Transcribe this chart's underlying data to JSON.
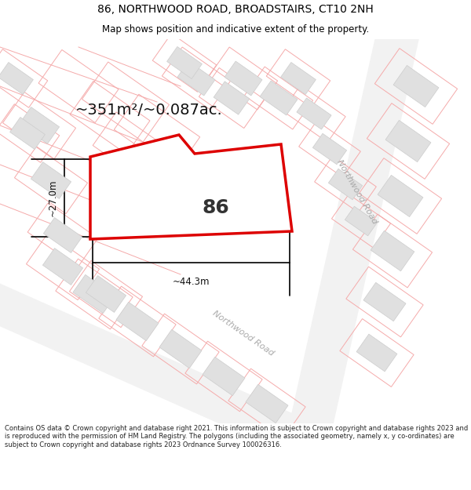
{
  "title_line1": "86, NORTHWOOD ROAD, BROADSTAIRS, CT10 2NH",
  "title_line2": "Map shows position and indicative extent of the property.",
  "area_text": "~351m²/~0.087ac.",
  "label_86": "86",
  "dim_height": "~27.0m",
  "dim_width": "~44.3m",
  "road_label_right": "Northwood Road",
  "road_label_lower": "Northwood Road",
  "footer_text": "Contains OS data © Crown copyright and database right 2021. This information is subject to Crown copyright and database rights 2023 and is reproduced with the permission of HM Land Registry. The polygons (including the associated geometry, namely x, y co-ordinates) are subject to Crown copyright and database rights 2023 Ordnance Survey 100026316.",
  "bg_color": "#ffffff",
  "cadastral_color": "#f5aaaa",
  "building_fill": "#e0e0e0",
  "building_edge": "#cccccc",
  "road_fill": "#f5f5f5",
  "plot_fill": "#ffffff",
  "plot_edge": "#dd0000",
  "map_bg": "#ffffff",
  "title_fontsize": 10,
  "subtitle_fontsize": 8.5,
  "area_fontsize": 14,
  "dim_fontsize": 8.5,
  "road_label_fontsize": 8,
  "label_fontsize": 18,
  "footer_fontsize": 6.0
}
